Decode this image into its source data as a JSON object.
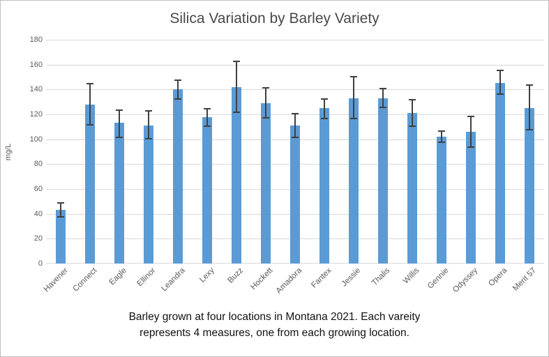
{
  "window": {
    "background_color": "#ffffff",
    "border_color": "#bfbfbf"
  },
  "chart_data": {
    "type": "bar",
    "title": "Silica Variation by Barley Variety",
    "xlabel": "",
    "ylabel": "mg/L",
    "ylim": [
      0,
      180
    ],
    "yticks": [
      0,
      20,
      40,
      60,
      80,
      100,
      120,
      140,
      160,
      180
    ],
    "grid": true,
    "legend": "none",
    "bar_color": "#5b9bd5",
    "error_bar_color": "#404040",
    "gridline_color": "#d9d9d9",
    "axis_text_color": "#595959",
    "categories": [
      "Havener",
      "Connect",
      "Eagle",
      "Ellinor",
      "Leandra",
      "Lexy",
      "Buzz",
      "Hockett",
      "Amadora",
      "Fantex",
      "Jessie",
      "Thalis",
      "Willis",
      "Gennie",
      "Odyssey",
      "Opera",
      "Merit 57"
    ],
    "values": [
      43,
      128,
      113,
      111,
      140,
      118,
      142,
      129,
      111,
      125,
      133,
      133,
      121,
      102,
      106,
      145,
      125
    ],
    "error_low": [
      38,
      112,
      102,
      101,
      133,
      111,
      122,
      118,
      102,
      117,
      117,
      126,
      111,
      98,
      94,
      137,
      108
    ],
    "error_high": [
      48,
      144,
      123,
      122,
      147,
      124,
      162,
      141,
      120,
      132,
      150,
      140,
      131,
      106,
      118,
      155,
      143
    ]
  },
  "caption": {
    "line1": "Barley grown at four locations in Montana 2021. Each vareity",
    "line2": "represents 4 measures, one from each growing location."
  }
}
